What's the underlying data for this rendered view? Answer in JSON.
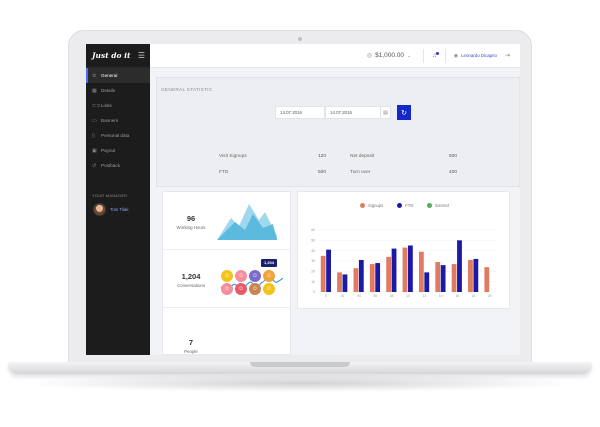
{
  "sidebar": {
    "logo": "Just do it",
    "items": [
      {
        "label": "General",
        "icon": "star-icon",
        "active": true
      },
      {
        "label": "Details",
        "icon": "grid-icon"
      },
      {
        "label": "Links",
        "icon": "link-icon"
      },
      {
        "label": "Banners",
        "icon": "image-icon"
      },
      {
        "label": "Personal data",
        "icon": "user-icon"
      },
      {
        "label": "Payout",
        "icon": "wallet-icon"
      },
      {
        "label": "Postback",
        "icon": "undo-icon"
      }
    ],
    "manager_title": "YOUR MANAGER",
    "manager_name": "Tom Tilak"
  },
  "header": {
    "balance": "$1,000.00",
    "user_name": "Leonardo Dicaprio"
  },
  "stats": {
    "title": "GENERAL STATISTIC",
    "date_from": "14.07.2016",
    "date_to": "14.07.2016",
    "visit_signups_label": "Visit Signups",
    "visit_signups_value": "120",
    "net_deposit_label": "Net deposit",
    "net_deposit_value": "600",
    "ftd_label": "FTD",
    "ftd_value": "500",
    "turn_over_label": "Turn over",
    "turn_over_value": "400"
  },
  "kpis": {
    "hours_value": "96",
    "hours_label": "Working Hours",
    "conv_value": "1,204",
    "conv_label": "Conversations",
    "conv_tooltip": "1,204",
    "people_value": "7",
    "people_label": "People"
  },
  "colors": {
    "signups": "#e07b62",
    "ftd": "#1a1aa6",
    "earned": "#4caf50",
    "accent": "#1428c8"
  },
  "chart_data": {
    "type": "bar",
    "legend": [
      "Signups",
      "FTD",
      "Earned"
    ],
    "categories": [
      "0",
      "2",
      "4",
      "6",
      "8",
      "10",
      "12",
      "14",
      "16",
      "18",
      "20"
    ],
    "ylim": [
      0,
      60
    ],
    "yticks": [
      "0",
      "10",
      "20",
      "30",
      "40",
      "50",
      "60"
    ],
    "xticks": [
      "0",
      "02",
      "04",
      "06",
      "08",
      "10",
      "12",
      "14",
      "16",
      "18",
      "20"
    ],
    "series": [
      {
        "name": "Signups",
        "values": [
          35,
          19,
          23,
          27,
          34,
          43,
          39,
          29,
          27,
          31,
          24
        ]
      },
      {
        "name": "FTD",
        "values": [
          41,
          17,
          31,
          28,
          42,
          45,
          19,
          26,
          50,
          32,
          0
        ]
      }
    ]
  }
}
